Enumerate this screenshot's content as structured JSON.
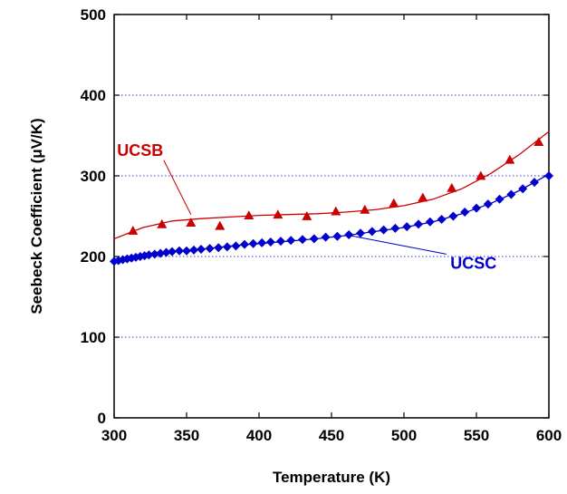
{
  "chart_data": {
    "type": "scatter",
    "title": "",
    "xlabel": "Temperature (K)",
    "ylabel": "Seebeck Coefficient (μV/K)",
    "xlim": [
      300,
      600
    ],
    "ylim": [
      0,
      500
    ],
    "xticks": [
      300,
      350,
      400,
      450,
      500,
      550,
      600
    ],
    "yticks": [
      0,
      100,
      200,
      300,
      400,
      500
    ],
    "grid": "horizontal dotted",
    "legend": "inline labels",
    "series": [
      {
        "name": "UCSB",
        "color": "#cc0000",
        "marker": "triangle",
        "points": [
          [
            313,
            232
          ],
          [
            333,
            240
          ],
          [
            353,
            242
          ],
          [
            373,
            238
          ],
          [
            393,
            251
          ],
          [
            413,
            252
          ],
          [
            433,
            250
          ],
          [
            453,
            256
          ],
          [
            473,
            258
          ],
          [
            493,
            266
          ],
          [
            513,
            273
          ],
          [
            533,
            285
          ],
          [
            553,
            300
          ],
          [
            573,
            320
          ],
          [
            593,
            342
          ]
        ],
        "fit": [
          [
            300,
            222
          ],
          [
            320,
            236
          ],
          [
            340,
            244
          ],
          [
            360,
            247
          ],
          [
            380,
            249
          ],
          [
            400,
            251
          ],
          [
            420,
            252
          ],
          [
            440,
            253
          ],
          [
            460,
            255
          ],
          [
            480,
            258
          ],
          [
            500,
            263
          ],
          [
            520,
            271
          ],
          [
            540,
            284
          ],
          [
            560,
            303
          ],
          [
            580,
            327
          ],
          [
            600,
            355
          ]
        ]
      },
      {
        "name": "UCSC",
        "color": "#0000cc",
        "marker": "diamond",
        "points": [
          [
            300,
            194
          ],
          [
            303,
            195
          ],
          [
            306,
            196
          ],
          [
            309,
            197
          ],
          [
            312,
            198
          ],
          [
            315,
            199
          ],
          [
            318,
            200
          ],
          [
            321,
            201
          ],
          [
            324,
            202
          ],
          [
            328,
            203
          ],
          [
            332,
            204
          ],
          [
            336,
            205
          ],
          [
            340,
            206
          ],
          [
            345,
            207
          ],
          [
            350,
            207
          ],
          [
            355,
            208
          ],
          [
            360,
            209
          ],
          [
            366,
            210
          ],
          [
            372,
            211
          ],
          [
            378,
            212
          ],
          [
            384,
            213
          ],
          [
            390,
            215
          ],
          [
            396,
            216
          ],
          [
            402,
            217
          ],
          [
            408,
            218
          ],
          [
            415,
            219
          ],
          [
            422,
            220
          ],
          [
            430,
            221
          ],
          [
            438,
            222
          ],
          [
            446,
            224
          ],
          [
            454,
            225
          ],
          [
            462,
            227
          ],
          [
            470,
            229
          ],
          [
            478,
            231
          ],
          [
            486,
            233
          ],
          [
            494,
            235
          ],
          [
            502,
            237
          ],
          [
            510,
            240
          ],
          [
            518,
            243
          ],
          [
            526,
            246
          ],
          [
            534,
            250
          ],
          [
            542,
            255
          ],
          [
            550,
            260
          ],
          [
            558,
            265
          ],
          [
            566,
            271
          ],
          [
            574,
            277
          ],
          [
            582,
            284
          ],
          [
            590,
            292
          ],
          [
            600,
            300
          ]
        ],
        "fit": [
          [
            300,
            193
          ],
          [
            320,
            201
          ],
          [
            340,
            206
          ],
          [
            360,
            209
          ],
          [
            380,
            213
          ],
          [
            400,
            216
          ],
          [
            420,
            219
          ],
          [
            440,
            222
          ],
          [
            460,
            226
          ],
          [
            480,
            231
          ],
          [
            500,
            236
          ],
          [
            520,
            243
          ],
          [
            540,
            253
          ],
          [
            560,
            266
          ],
          [
            580,
            282
          ],
          [
            600,
            302
          ]
        ]
      }
    ],
    "annotations": [
      {
        "text": "UCSB",
        "series": 0,
        "text_at": [
          318,
          325
        ],
        "arrow_to": [
          353,
          252
        ]
      },
      {
        "text": "UCSC",
        "series": 1,
        "text_at": [
          548,
          185
        ],
        "arrow_to": [
          460,
          227
        ]
      }
    ]
  }
}
